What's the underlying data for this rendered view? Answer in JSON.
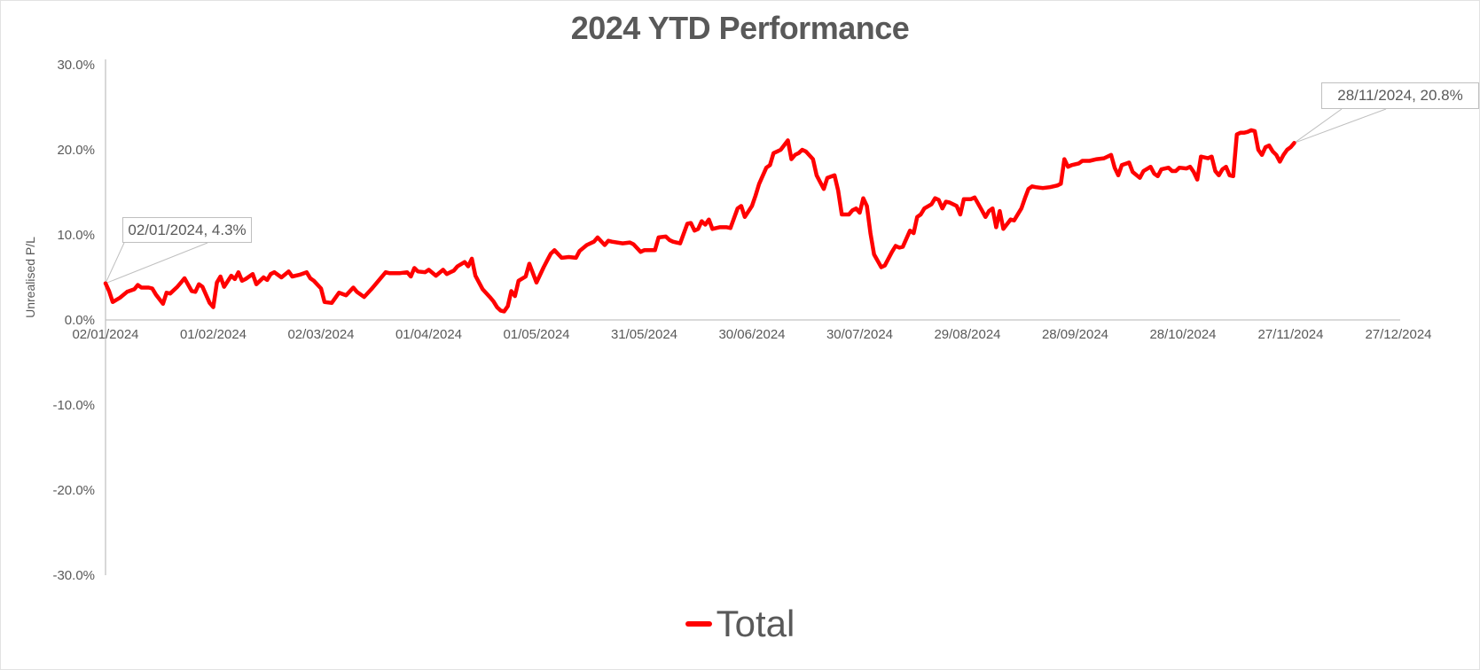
{
  "chart_data": {
    "type": "line",
    "title": "2024 YTD Performance",
    "ylabel": "Unrealised P/L",
    "xlabel": "",
    "ylim": [
      -30,
      30
    ],
    "x_range_days": [
      0,
      360
    ],
    "grid": false,
    "legend": {
      "position": "bottom",
      "items": [
        {
          "label": "Total",
          "color": "#FF0000"
        }
      ]
    },
    "y_ticks": [
      {
        "value": 30,
        "label": "30.0%"
      },
      {
        "value": 20,
        "label": "20.0%"
      },
      {
        "value": 10,
        "label": "10.0%"
      },
      {
        "value": 0,
        "label": "0.0%"
      },
      {
        "value": -10,
        "label": "-10.0%"
      },
      {
        "value": -20,
        "label": "-20.0%"
      },
      {
        "value": -30,
        "label": "-30.0%"
      }
    ],
    "x_ticks": [
      {
        "day": 0,
        "label": "02/01/2024"
      },
      {
        "day": 30,
        "label": "01/02/2024"
      },
      {
        "day": 60,
        "label": "02/03/2024"
      },
      {
        "day": 90,
        "label": "01/04/2024"
      },
      {
        "day": 120,
        "label": "01/05/2024"
      },
      {
        "day": 150,
        "label": "31/05/2024"
      },
      {
        "day": 180,
        "label": "30/06/2024"
      },
      {
        "day": 210,
        "label": "30/07/2024"
      },
      {
        "day": 240,
        "label": "29/08/2024"
      },
      {
        "day": 270,
        "label": "28/09/2024"
      },
      {
        "day": 300,
        "label": "28/10/2024"
      },
      {
        "day": 330,
        "label": "27/11/2024"
      },
      {
        "day": 360,
        "label": "27/12/2024"
      }
    ],
    "annotations": [
      {
        "label": "02/01/2024, 4.3%",
        "day": 0,
        "value": 4.3
      },
      {
        "label": "28/11/2024, 20.8%",
        "day": 331,
        "value": 20.8
      }
    ],
    "series": [
      {
        "name": "Total",
        "color": "#FF0000",
        "points": [
          [
            0,
            4.3
          ],
          [
            1,
            3.4
          ],
          [
            2,
            2.1
          ],
          [
            4,
            2.6
          ],
          [
            6,
            3.3
          ],
          [
            8,
            3.6
          ],
          [
            9,
            4.1
          ],
          [
            10,
            3.8
          ],
          [
            12,
            3.8
          ],
          [
            13,
            3.7
          ],
          [
            14,
            3.0
          ],
          [
            16,
            1.9
          ],
          [
            17,
            3.2
          ],
          [
            18,
            3.1
          ],
          [
            20,
            3.9
          ],
          [
            21,
            4.4
          ],
          [
            22,
            4.9
          ],
          [
            24,
            3.4
          ],
          [
            25,
            3.3
          ],
          [
            26,
            4.2
          ],
          [
            27,
            3.9
          ],
          [
            29,
            2.0
          ],
          [
            30,
            1.5
          ],
          [
            31,
            4.4
          ],
          [
            32,
            5.1
          ],
          [
            33,
            3.9
          ],
          [
            35,
            5.2
          ],
          [
            36,
            4.8
          ],
          [
            37,
            5.6
          ],
          [
            38,
            4.6
          ],
          [
            39,
            4.8
          ],
          [
            41,
            5.4
          ],
          [
            42,
            4.2
          ],
          [
            44,
            5.0
          ],
          [
            45,
            4.7
          ],
          [
            46,
            5.4
          ],
          [
            47,
            5.6
          ],
          [
            49,
            5.0
          ],
          [
            51,
            5.7
          ],
          [
            52,
            5.1
          ],
          [
            54,
            5.3
          ],
          [
            56,
            5.6
          ],
          [
            57,
            4.9
          ],
          [
            58,
            4.6
          ],
          [
            60,
            3.7
          ],
          [
            61,
            2.1
          ],
          [
            63,
            2.0
          ],
          [
            65,
            3.2
          ],
          [
            67,
            2.9
          ],
          [
            69,
            3.8
          ],
          [
            70,
            3.3
          ],
          [
            72,
            2.7
          ],
          [
            74,
            3.6
          ],
          [
            76,
            4.6
          ],
          [
            78,
            5.6
          ],
          [
            79,
            5.5
          ],
          [
            82,
            5.5
          ],
          [
            84,
            5.6
          ],
          [
            85,
            5.1
          ],
          [
            86,
            6.1
          ],
          [
            87,
            5.7
          ],
          [
            89,
            5.6
          ],
          [
            90,
            5.9
          ],
          [
            92,
            5.2
          ],
          [
            94,
            5.9
          ],
          [
            95,
            5.4
          ],
          [
            97,
            5.8
          ],
          [
            98,
            6.3
          ],
          [
            100,
            6.8
          ],
          [
            101,
            6.3
          ],
          [
            102,
            7.2
          ],
          [
            103,
            5.2
          ],
          [
            105,
            3.6
          ],
          [
            107,
            2.7
          ],
          [
            108,
            2.2
          ],
          [
            109,
            1.5
          ],
          [
            110,
            1.1
          ],
          [
            111,
            1.0
          ],
          [
            112,
            1.6
          ],
          [
            113,
            3.4
          ],
          [
            114,
            2.8
          ],
          [
            115,
            4.6
          ],
          [
            117,
            5.1
          ],
          [
            118,
            6.6
          ],
          [
            120,
            4.4
          ],
          [
            122,
            6.2
          ],
          [
            123,
            7.0
          ],
          [
            124,
            7.8
          ],
          [
            125,
            8.2
          ],
          [
            127,
            7.3
          ],
          [
            129,
            7.4
          ],
          [
            131,
            7.3
          ],
          [
            132,
            8.1
          ],
          [
            134,
            8.8
          ],
          [
            136,
            9.2
          ],
          [
            137,
            9.7
          ],
          [
            139,
            8.8
          ],
          [
            140,
            9.3
          ],
          [
            141,
            9.2
          ],
          [
            144,
            9.0
          ],
          [
            146,
            9.1
          ],
          [
            147,
            8.9
          ],
          [
            149,
            8.0
          ],
          [
            150,
            8.2
          ],
          [
            153,
            8.2
          ],
          [
            154,
            9.7
          ],
          [
            156,
            9.8
          ],
          [
            157,
            9.4
          ],
          [
            158,
            9.2
          ],
          [
            160,
            9.0
          ],
          [
            162,
            11.3
          ],
          [
            163,
            11.4
          ],
          [
            164,
            10.5
          ],
          [
            165,
            10.7
          ],
          [
            166,
            11.6
          ],
          [
            167,
            11.2
          ],
          [
            168,
            11.8
          ],
          [
            169,
            10.7
          ],
          [
            171,
            10.9
          ],
          [
            173,
            10.9
          ],
          [
            174,
            10.8
          ],
          [
            176,
            13.1
          ],
          [
            177,
            13.4
          ],
          [
            178,
            12.1
          ],
          [
            180,
            13.4
          ],
          [
            181,
            14.6
          ],
          [
            182,
            16.0
          ],
          [
            184,
            17.9
          ],
          [
            185,
            18.2
          ],
          [
            186,
            19.6
          ],
          [
            187,
            19.8
          ],
          [
            188,
            20.0
          ],
          [
            190,
            21.1
          ],
          [
            191,
            18.9
          ],
          [
            192,
            19.4
          ],
          [
            193,
            19.6
          ],
          [
            194,
            20.0
          ],
          [
            195,
            19.8
          ],
          [
            197,
            18.9
          ],
          [
            198,
            17.0
          ],
          [
            199,
            16.2
          ],
          [
            200,
            15.4
          ],
          [
            201,
            16.7
          ],
          [
            203,
            17.0
          ],
          [
            204,
            15.2
          ],
          [
            205,
            12.4
          ],
          [
            207,
            12.4
          ],
          [
            208,
            12.9
          ],
          [
            209,
            13.1
          ],
          [
            210,
            12.6
          ],
          [
            211,
            14.3
          ],
          [
            212,
            13.4
          ],
          [
            213,
            10.2
          ],
          [
            214,
            7.7
          ],
          [
            216,
            6.2
          ],
          [
            217,
            6.4
          ],
          [
            219,
            8.0
          ],
          [
            220,
            8.7
          ],
          [
            221,
            8.5
          ],
          [
            222,
            8.6
          ],
          [
            224,
            10.5
          ],
          [
            225,
            10.2
          ],
          [
            226,
            12.1
          ],
          [
            227,
            12.4
          ],
          [
            228,
            13.1
          ],
          [
            230,
            13.6
          ],
          [
            231,
            14.3
          ],
          [
            232,
            14.1
          ],
          [
            233,
            13.1
          ],
          [
            234,
            13.9
          ],
          [
            235,
            13.8
          ],
          [
            237,
            13.4
          ],
          [
            238,
            12.4
          ],
          [
            239,
            14.2
          ],
          [
            241,
            14.2
          ],
          [
            242,
            14.4
          ],
          [
            244,
            12.9
          ],
          [
            245,
            12.1
          ],
          [
            246,
            12.8
          ],
          [
            247,
            13.1
          ],
          [
            248,
            10.9
          ],
          [
            249,
            12.8
          ],
          [
            250,
            10.7
          ],
          [
            252,
            11.8
          ],
          [
            253,
            11.7
          ],
          [
            255,
            13.1
          ],
          [
            256,
            14.3
          ],
          [
            257,
            15.4
          ],
          [
            258,
            15.7
          ],
          [
            259,
            15.6
          ],
          [
            261,
            15.5
          ],
          [
            263,
            15.6
          ],
          [
            265,
            15.8
          ],
          [
            266,
            16.0
          ],
          [
            267,
            18.9
          ],
          [
            268,
            18.0
          ],
          [
            269,
            18.2
          ],
          [
            271,
            18.4
          ],
          [
            272,
            18.7
          ],
          [
            274,
            18.7
          ],
          [
            276,
            18.9
          ],
          [
            278,
            19.0
          ],
          [
            280,
            19.4
          ],
          [
            281,
            17.9
          ],
          [
            282,
            17.0
          ],
          [
            283,
            18.2
          ],
          [
            285,
            18.5
          ],
          [
            286,
            17.4
          ],
          [
            288,
            16.7
          ],
          [
            289,
            17.5
          ],
          [
            291,
            18.0
          ],
          [
            292,
            17.2
          ],
          [
            293,
            16.9
          ],
          [
            294,
            17.7
          ],
          [
            296,
            17.9
          ],
          [
            297,
            17.5
          ],
          [
            298,
            17.5
          ],
          [
            299,
            17.9
          ],
          [
            301,
            17.8
          ],
          [
            302,
            18.0
          ],
          [
            303,
            17.4
          ],
          [
            304,
            16.5
          ],
          [
            305,
            19.2
          ],
          [
            307,
            19.0
          ],
          [
            308,
            19.2
          ],
          [
            309,
            17.5
          ],
          [
            310,
            17.0
          ],
          [
            311,
            17.7
          ],
          [
            312,
            18.0
          ],
          [
            313,
            17.0
          ],
          [
            314,
            16.9
          ],
          [
            315,
            21.8
          ],
          [
            316,
            22.0
          ],
          [
            317,
            22.0
          ],
          [
            318,
            22.1
          ],
          [
            319,
            22.3
          ],
          [
            320,
            22.2
          ],
          [
            321,
            20.0
          ],
          [
            322,
            19.4
          ],
          [
            323,
            20.3
          ],
          [
            324,
            20.5
          ],
          [
            325,
            19.8
          ],
          [
            326,
            19.4
          ],
          [
            327,
            18.6
          ],
          [
            328,
            19.4
          ],
          [
            329,
            20.0
          ],
          [
            330,
            20.3
          ],
          [
            331,
            20.8
          ]
        ]
      }
    ]
  },
  "colors": {
    "text": "#595959",
    "axis": "#C3C3C3",
    "callout_border": "#BFBFBF",
    "series_red": "#FF0000",
    "background": "#FFFFFF"
  }
}
